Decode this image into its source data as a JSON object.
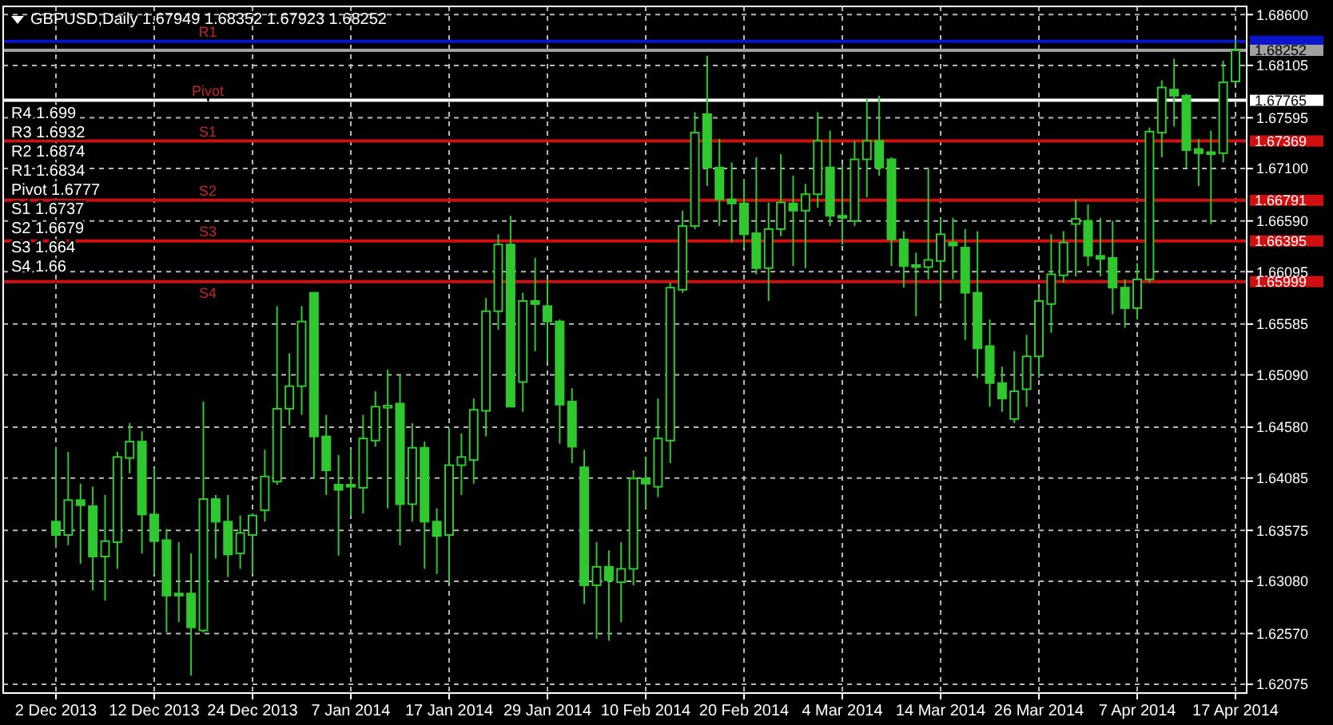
{
  "chart_data": {
    "type": "candlestick",
    "title": "GBPUSD,Daily 1.67949 1.68352 1.67923 1.68252",
    "categories": [
      "2 Dec 2013",
      null,
      null,
      null,
      null,
      null,
      null,
      null,
      "12 Dec 2013",
      null,
      null,
      null,
      null,
      null,
      null,
      null,
      "24 Dec 2013",
      null,
      null,
      null,
      null,
      null,
      null,
      null,
      "7 Jan 2014",
      null,
      null,
      null,
      null,
      null,
      null,
      null,
      "17 Jan 2014",
      null,
      null,
      null,
      null,
      null,
      null,
      null,
      "29 Jan 2014",
      null,
      null,
      null,
      null,
      null,
      null,
      null,
      "10 Feb 2014",
      null,
      null,
      null,
      null,
      null,
      null,
      null,
      "20 Feb 2014",
      null,
      null,
      null,
      null,
      null,
      null,
      null,
      "4 Mar 2014",
      null,
      null,
      null,
      null,
      null,
      null,
      null,
      "14 Mar 2014",
      null,
      null,
      null,
      null,
      null,
      null,
      null,
      "26 Mar 2014",
      null,
      null,
      null,
      null,
      null,
      null,
      null,
      "7 Apr 2014",
      null,
      null,
      null,
      null,
      null,
      null,
      null,
      "17 Apr 2014"
    ],
    "ohlc": [
      [
        1.6366,
        1.6439,
        1.6341,
        1.6353
      ],
      [
        1.6353,
        1.6434,
        1.6343,
        1.6387
      ],
      [
        1.6387,
        1.6403,
        1.6325,
        1.6382
      ],
      [
        1.6381,
        1.64,
        1.6299,
        1.6332
      ],
      [
        1.6332,
        1.6392,
        1.6289,
        1.6347
      ],
      [
        1.6346,
        1.6434,
        1.632,
        1.6429
      ],
      [
        1.6428,
        1.6462,
        1.6413,
        1.6444
      ],
      [
        1.6444,
        1.6454,
        1.6335,
        1.6373
      ],
      [
        1.6373,
        1.6418,
        1.6315,
        1.6347
      ],
      [
        1.6348,
        1.6359,
        1.6258,
        1.6294
      ],
      [
        1.6296,
        1.6346,
        1.6268,
        1.6294
      ],
      [
        1.6296,
        1.6335,
        1.6216,
        1.6263
      ],
      [
        1.626,
        1.6483,
        1.6258,
        1.6388
      ],
      [
        1.6388,
        1.6392,
        1.633,
        1.6366
      ],
      [
        1.6366,
        1.6392,
        1.6312,
        1.6334
      ],
      [
        1.6335,
        1.6372,
        1.632,
        1.6355
      ],
      [
        1.6353,
        1.6374,
        1.6315,
        1.6372
      ],
      [
        1.6377,
        1.6436,
        1.6366,
        1.641
      ],
      [
        1.6405,
        1.6576,
        1.6402,
        1.6476
      ],
      [
        1.6476,
        1.653,
        1.646,
        1.6498
      ],
      [
        1.6498,
        1.6576,
        1.647,
        1.6561
      ],
      [
        1.6589,
        1.6589,
        1.6408,
        1.6449
      ],
      [
        1.6449,
        1.647,
        1.6392,
        1.6416
      ],
      [
        1.6402,
        1.6431,
        1.6333,
        1.6397
      ],
      [
        1.6402,
        1.6436,
        1.6372,
        1.64
      ],
      [
        1.6399,
        1.647,
        1.6374,
        1.6447
      ],
      [
        1.6445,
        1.6493,
        1.6439,
        1.6478
      ],
      [
        1.6477,
        1.6514,
        1.6379,
        1.6479
      ],
      [
        1.6481,
        1.6509,
        1.6343,
        1.6383
      ],
      [
        1.6383,
        1.6462,
        1.6366,
        1.6438
      ],
      [
        1.6438,
        1.6444,
        1.632,
        1.6366
      ],
      [
        1.6366,
        1.6379,
        1.6315,
        1.6352
      ],
      [
        1.6353,
        1.6457,
        1.6307,
        1.6421
      ],
      [
        1.6421,
        1.6452,
        1.6392,
        1.6429
      ],
      [
        1.6426,
        1.6486,
        1.6403,
        1.6475
      ],
      [
        1.6474,
        1.6584,
        1.6449,
        1.6571
      ],
      [
        1.6571,
        1.6646,
        1.6553,
        1.6636
      ],
      [
        1.6636,
        1.6664,
        1.6478,
        1.6478
      ],
      [
        1.6502,
        1.6589,
        1.6473,
        1.6581
      ],
      [
        1.6581,
        1.6623,
        1.6532,
        1.6578
      ],
      [
        1.6576,
        1.6602,
        1.6522,
        1.6561
      ],
      [
        1.6561,
        1.6563,
        1.6442,
        1.648
      ],
      [
        1.6483,
        1.6496,
        1.6423,
        1.6439
      ],
      [
        1.6419,
        1.6436,
        1.6286,
        1.6304
      ],
      [
        1.6304,
        1.6346,
        1.6252,
        1.6322
      ],
      [
        1.6322,
        1.6338,
        1.625,
        1.6309
      ],
      [
        1.6307,
        1.6346,
        1.6268,
        1.632
      ],
      [
        1.632,
        1.6416,
        1.6304,
        1.6408
      ],
      [
        1.6408,
        1.6429,
        1.6379,
        1.6403
      ],
      [
        1.64,
        1.6486,
        1.639,
        1.6447
      ],
      [
        1.6445,
        1.6599,
        1.6423,
        1.6594
      ],
      [
        1.6592,
        1.6669,
        1.6589,
        1.6654
      ],
      [
        1.6654,
        1.6765,
        1.6651,
        1.6745
      ],
      [
        1.6763,
        1.682,
        1.6693,
        1.6711
      ],
      [
        1.6711,
        1.6739,
        1.6654,
        1.668
      ],
      [
        1.668,
        1.6716,
        1.6638,
        1.6676
      ],
      [
        1.6676,
        1.67,
        1.6633,
        1.6646
      ],
      [
        1.6647,
        1.6721,
        1.6607,
        1.6613
      ],
      [
        1.6613,
        1.6677,
        1.6581,
        1.6651
      ],
      [
        1.6651,
        1.6724,
        1.6644,
        1.6677
      ],
      [
        1.6676,
        1.6703,
        1.6615,
        1.6669
      ],
      [
        1.6669,
        1.6695,
        1.6613,
        1.6685
      ],
      [
        1.6685,
        1.6765,
        1.6672,
        1.6737
      ],
      [
        1.6711,
        1.6747,
        1.6654,
        1.6664
      ],
      [
        1.6664,
        1.6714,
        1.6636,
        1.6662
      ],
      [
        1.6659,
        1.6737,
        1.6654,
        1.6719
      ],
      [
        1.6719,
        1.6778,
        1.6682,
        1.6737
      ],
      [
        1.6737,
        1.6781,
        1.6703,
        1.6711
      ],
      [
        1.6719,
        1.6721,
        1.6615,
        1.6641
      ],
      [
        1.6641,
        1.6649,
        1.6594,
        1.6615
      ],
      [
        1.6616,
        1.6628,
        1.6566,
        1.6614
      ],
      [
        1.6614,
        1.6711,
        1.6602,
        1.6621
      ],
      [
        1.662,
        1.6662,
        1.6581,
        1.6646
      ],
      [
        1.6638,
        1.6662,
        1.6602,
        1.6635
      ],
      [
        1.6633,
        1.6651,
        1.6543,
        1.6589
      ],
      [
        1.6589,
        1.6649,
        1.6506,
        1.6535
      ],
      [
        1.6537,
        1.6563,
        1.6478,
        1.6501
      ],
      [
        1.6501,
        1.6517,
        1.6473,
        1.6486
      ],
      [
        1.6466,
        1.6532,
        1.6462,
        1.6493
      ],
      [
        1.6495,
        1.6548,
        1.6478,
        1.6527
      ],
      [
        1.6527,
        1.6594,
        1.6506,
        1.6581
      ],
      [
        1.6578,
        1.6646,
        1.655,
        1.6607
      ],
      [
        1.6606,
        1.6649,
        1.6599,
        1.6638
      ],
      [
        1.6656,
        1.668,
        1.6605,
        1.6661
      ],
      [
        1.6659,
        1.6675,
        1.6615,
        1.6625
      ],
      [
        1.6625,
        1.6662,
        1.6605,
        1.6622
      ],
      [
        1.6623,
        1.6659,
        1.6568,
        1.6594
      ],
      [
        1.6594,
        1.6602,
        1.6555,
        1.6574
      ],
      [
        1.6574,
        1.6618,
        1.6563,
        1.6602
      ],
      [
        1.6602,
        1.675,
        1.6599,
        1.6746
      ],
      [
        1.6745,
        1.6796,
        1.6721,
        1.6789
      ],
      [
        1.6787,
        1.6817,
        1.6751,
        1.6781
      ],
      [
        1.6781,
        1.6783,
        1.6711,
        1.6728
      ],
      [
        1.6729,
        1.6739,
        1.6693,
        1.6725
      ],
      [
        1.6726,
        1.6747,
        1.6656,
        1.6724
      ],
      [
        1.6725,
        1.6815,
        1.6716,
        1.6794
      ],
      [
        1.67949,
        1.68352,
        1.67923,
        1.68252
      ]
    ],
    "color": "#2fc82f",
    "ylim": [
      1.6199,
      1.6868
    ],
    "yticks": [
      {
        "value": 1.686,
        "label": "1.68600"
      },
      1.68105,
      1.67595,
      {
        "value": 1.671,
        "label": "1.67100"
      },
      {
        "value": 1.6659,
        "label": "1.66590"
      },
      1.66095,
      1.65585,
      {
        "value": 1.6509,
        "label": "1.65090"
      },
      {
        "value": 1.6458,
        "label": "1.64580"
      },
      1.64085,
      1.63575,
      {
        "value": 1.6308,
        "label": "1.63080"
      },
      {
        "value": 1.6257,
        "label": "1.62570"
      },
      1.62075
    ],
    "grid": true,
    "ref_lines": [
      {
        "axis": "y",
        "value": 1.6834,
        "color": "#0a14c8"
      },
      {
        "axis": "y",
        "value": 1.67765,
        "label": "1.67765",
        "color": "#ffffff"
      },
      {
        "axis": "y",
        "value": 1.67369,
        "label": "1.67369",
        "color": "#d01010"
      },
      {
        "axis": "y",
        "value": 1.66791,
        "label": "1.66791",
        "color": "#d01010"
      },
      {
        "axis": "y",
        "value": 1.66395,
        "label": "1.66395",
        "color": "#d01010"
      },
      {
        "axis": "y",
        "value": 1.65999,
        "label": "1.65999",
        "color": "#d01010"
      },
      {
        "axis": "y",
        "value": 1.68252,
        "label": "1.68252",
        "color": "#a0a0a0"
      }
    ],
    "annotations": [
      "R4 1.699",
      "R3 1.6932",
      "R2 1.6874",
      "R1 1.6834",
      "Pivot 1.6777",
      "S1 1.6737",
      "S2 1.6679",
      "S3 1.664",
      "S4 1.66",
      "R1",
      "Pivot",
      "S1",
      "S2",
      "S3",
      "S4"
    ]
  }
}
